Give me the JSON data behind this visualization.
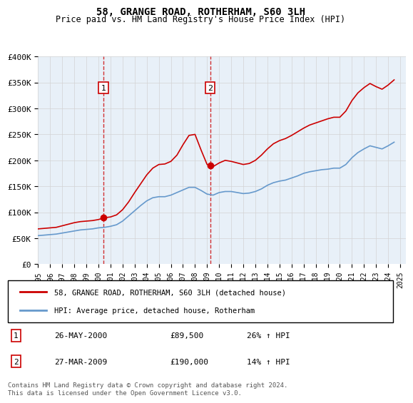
{
  "title": "58, GRANGE ROAD, ROTHERHAM, S60 3LH",
  "subtitle": "Price paid vs. HM Land Registry's House Price Index (HPI)",
  "ylim": [
    0,
    400000
  ],
  "yticks": [
    0,
    50000,
    100000,
    150000,
    200000,
    250000,
    300000,
    350000,
    400000
  ],
  "ytick_labels": [
    "£0",
    "£50K",
    "£100K",
    "£150K",
    "£200K",
    "£250K",
    "£300K",
    "£350K",
    "£400K"
  ],
  "xlim_start": 1995.0,
  "xlim_end": 2025.5,
  "bg_color": "#e8f0f8",
  "plot_bg_color": "#ffffff",
  "red_color": "#cc0000",
  "blue_color": "#6699cc",
  "marker1_date": 2000.4,
  "marker1_value": 89500,
  "marker2_date": 2009.25,
  "marker2_value": 190000,
  "legend_line1": "58, GRANGE ROAD, ROTHERHAM, S60 3LH (detached house)",
  "legend_line2": "HPI: Average price, detached house, Rotherham",
  "table_row1": [
    "1",
    "26-MAY-2000",
    "£89,500",
    "26% ↑ HPI"
  ],
  "table_row2": [
    "2",
    "27-MAR-2009",
    "£190,000",
    "14% ↑ HPI"
  ],
  "footnote": "Contains HM Land Registry data © Crown copyright and database right 2024.\nThis data is licensed under the Open Government Licence v3.0.",
  "hpi_data": {
    "years": [
      1995.0,
      1995.5,
      1996.0,
      1996.5,
      1997.0,
      1997.5,
      1998.0,
      1998.5,
      1999.0,
      1999.5,
      2000.0,
      2000.5,
      2001.0,
      2001.5,
      2002.0,
      2002.5,
      2003.0,
      2003.5,
      2004.0,
      2004.5,
      2005.0,
      2005.5,
      2006.0,
      2006.5,
      2007.0,
      2007.5,
      2008.0,
      2008.5,
      2009.0,
      2009.5,
      2010.0,
      2010.5,
      2011.0,
      2011.5,
      2012.0,
      2012.5,
      2013.0,
      2013.5,
      2014.0,
      2014.5,
      2015.0,
      2015.5,
      2016.0,
      2016.5,
      2017.0,
      2017.5,
      2018.0,
      2018.5,
      2019.0,
      2019.5,
      2020.0,
      2020.5,
      2021.0,
      2021.5,
      2022.0,
      2022.5,
      2023.0,
      2023.5,
      2024.0,
      2024.5
    ],
    "hpi_values": [
      55000,
      56000,
      57000,
      58000,
      60000,
      62000,
      64000,
      66000,
      67000,
      68000,
      70000,
      71000,
      73000,
      76000,
      83000,
      93000,
      103000,
      113000,
      122000,
      128000,
      130000,
      130000,
      133000,
      138000,
      143000,
      148000,
      148000,
      142000,
      135000,
      133000,
      138000,
      140000,
      140000,
      138000,
      136000,
      137000,
      140000,
      145000,
      152000,
      157000,
      160000,
      162000,
      166000,
      170000,
      175000,
      178000,
      180000,
      182000,
      183000,
      185000,
      185000,
      192000,
      205000,
      215000,
      222000,
      228000,
      225000,
      222000,
      228000,
      235000
    ],
    "red_values": [
      68000,
      69000,
      70000,
      71000,
      74000,
      77000,
      80000,
      82000,
      83000,
      84000,
      86000,
      89500,
      91000,
      95000,
      105000,
      120000,
      138000,
      155000,
      172000,
      185000,
      192000,
      193000,
      198000,
      210000,
      230000,
      248000,
      250000,
      220000,
      192000,
      188000,
      195000,
      200000,
      198000,
      195000,
      192000,
      194000,
      200000,
      210000,
      222000,
      232000,
      238000,
      242000,
      248000,
      255000,
      262000,
      268000,
      272000,
      276000,
      280000,
      283000,
      283000,
      295000,
      315000,
      330000,
      340000,
      348000,
      342000,
      337000,
      345000,
      355000
    ]
  }
}
